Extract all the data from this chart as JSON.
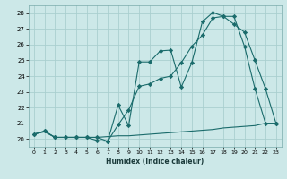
{
  "xlabel": "Humidex (Indice chaleur)",
  "ylabel": "",
  "bg_color": "#cce8e8",
  "grid_color": "#aacfcf",
  "line_color": "#1a6b6b",
  "xlim": [
    -0.5,
    23.5
  ],
  "ylim": [
    19.5,
    28.5
  ],
  "xticks": [
    0,
    1,
    2,
    3,
    4,
    5,
    6,
    7,
    8,
    9,
    10,
    11,
    12,
    13,
    14,
    15,
    16,
    17,
    18,
    19,
    20,
    21,
    22,
    23
  ],
  "yticks": [
    20,
    21,
    22,
    23,
    24,
    25,
    26,
    27,
    28
  ],
  "series1_x": [
    0,
    1,
    2,
    3,
    4,
    5,
    6,
    7,
    8,
    9,
    10,
    11,
    12,
    13,
    14,
    15,
    16,
    17,
    18,
    19,
    20,
    21,
    22,
    23
  ],
  "series1_y": [
    20.3,
    20.5,
    20.1,
    20.1,
    20.1,
    20.1,
    19.9,
    19.85,
    20.9,
    21.85,
    23.35,
    23.5,
    23.85,
    24.0,
    24.85,
    25.9,
    26.6,
    27.7,
    27.8,
    27.3,
    26.8,
    25.0,
    23.2,
    21.0
  ],
  "series2_x": [
    0,
    1,
    2,
    3,
    4,
    5,
    6,
    7,
    8,
    9,
    10,
    11,
    12,
    13,
    14,
    15,
    16,
    17,
    18,
    19,
    20,
    21,
    22,
    23
  ],
  "series2_y": [
    20.3,
    20.45,
    20.1,
    20.1,
    20.1,
    20.1,
    20.1,
    20.15,
    20.2,
    20.2,
    20.25,
    20.3,
    20.35,
    20.4,
    20.45,
    20.5,
    20.55,
    20.6,
    20.7,
    20.75,
    20.8,
    20.85,
    21.0,
    21.0
  ],
  "series3_x": [
    0,
    1,
    2,
    3,
    4,
    5,
    6,
    7,
    8,
    9,
    10,
    11,
    12,
    13,
    14,
    15,
    16,
    17,
    18,
    19,
    20,
    21,
    22,
    23
  ],
  "series3_y": [
    20.3,
    20.5,
    20.1,
    20.1,
    20.1,
    20.1,
    20.1,
    19.85,
    22.15,
    20.85,
    24.9,
    24.9,
    25.6,
    25.65,
    23.3,
    24.85,
    27.45,
    28.05,
    27.8,
    27.8,
    25.9,
    23.2,
    21.0,
    21.0
  ]
}
